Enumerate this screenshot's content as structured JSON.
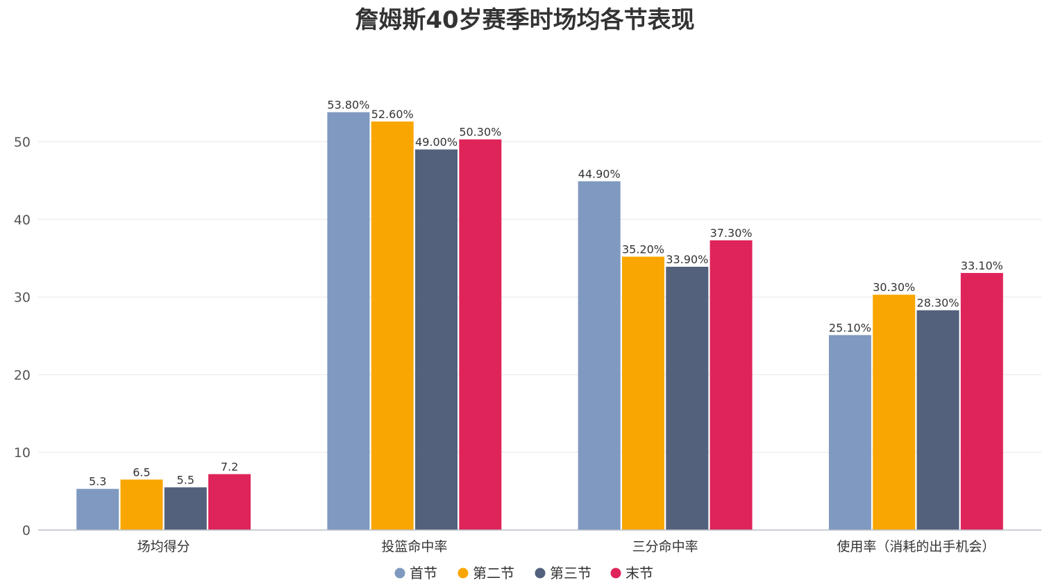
{
  "chart_data": {
    "type": "bar",
    "title": "詹姆斯40岁赛季时场均各节表现",
    "categories": [
      "场均得分",
      "投篮命中率",
      "三分命中率",
      "使用率（消耗的出手机会）"
    ],
    "series": [
      {
        "name": "首节",
        "color": "#7f99c0",
        "values": [
          5.3,
          53.8,
          44.9,
          25.1
        ],
        "labels": [
          "5.3",
          "53.80%",
          "44.90%",
          "25.10%"
        ]
      },
      {
        "name": "第二节",
        "color": "#f9a602",
        "values": [
          6.5,
          52.6,
          35.2,
          30.3
        ],
        "labels": [
          "6.5",
          "52.60%",
          "35.20%",
          "30.30%"
        ]
      },
      {
        "name": "第三节",
        "color": "#53617d",
        "values": [
          5.5,
          49.0,
          33.9,
          28.3
        ],
        "labels": [
          "5.5",
          "49.00%",
          "33.90%",
          "28.30%"
        ]
      },
      {
        "name": "末节",
        "color": "#df245a",
        "values": [
          7.2,
          50.3,
          37.3,
          33.1
        ],
        "labels": [
          "7.2",
          "50.30%",
          "37.30%",
          "33.10%"
        ]
      }
    ],
    "yticks": [
      0,
      10,
      20,
      30,
      40,
      50
    ],
    "ylim": [
      0,
      60
    ],
    "grid": true,
    "legend_position": "bottom-center"
  }
}
